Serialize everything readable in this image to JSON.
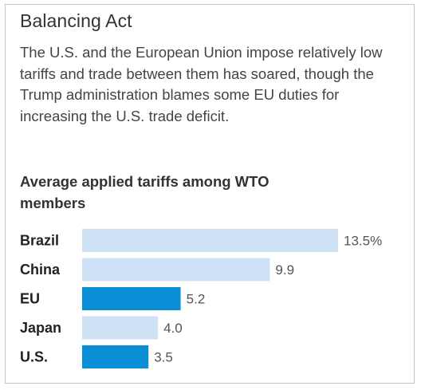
{
  "header": {
    "title": "Balancing Act",
    "description": "The U.S. and the European Union impose relatively low tariffs and trade between them has soared, though the Trump administration blames some EU duties for increasing the U.S. trade deficit."
  },
  "colors": {
    "highlight": "#0a8fd6",
    "default": "#cfe2f5",
    "border": "#b9c9d3"
  },
  "chart_data": {
    "type": "bar",
    "orientation": "horizontal",
    "title": "Average applied tariffs among WTO members",
    "xlabel": "",
    "ylabel": "",
    "xlim": [
      0,
      13.5
    ],
    "grid": false,
    "categories": [
      "Brazil",
      "China",
      "EU",
      "Japan",
      "U.S."
    ],
    "values": [
      13.5,
      9.9,
      5.2,
      4.0,
      3.5
    ],
    "value_labels": [
      "13.5%",
      "9.9",
      "5.2",
      "4.0",
      "3.5"
    ],
    "highlighted": [
      "EU",
      "U.S."
    ]
  }
}
